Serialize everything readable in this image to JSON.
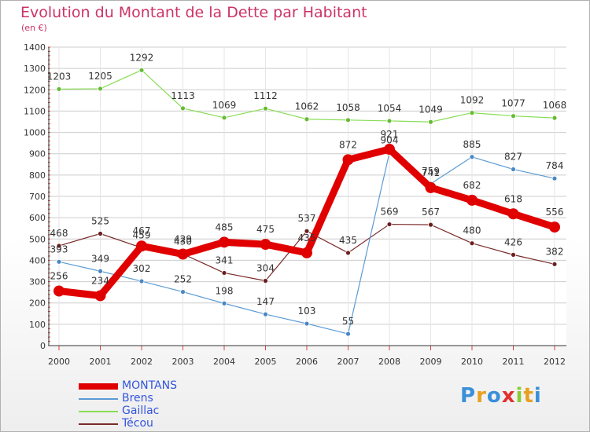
{
  "title": "Evolution du Montant de la Dette par Habitant",
  "subtitle": "(en €)",
  "logo": "Proxiti",
  "chart_data": {
    "type": "line",
    "title": "Evolution du Montant de la Dette par Habitant",
    "subtitle": "(en €)",
    "x": [
      "2000",
      "2001",
      "2002",
      "2003",
      "2004",
      "2005",
      "2006",
      "2007",
      "2008",
      "2009",
      "2010",
      "2011",
      "2012"
    ],
    "ylim": [
      0,
      1400
    ],
    "yticks": [
      0,
      100,
      200,
      300,
      400,
      500,
      600,
      700,
      800,
      900,
      1000,
      1100,
      1200,
      1300,
      1400
    ],
    "grid": true,
    "legend_position": "bottom-left",
    "series": [
      {
        "name": "MONTANS",
        "color": "#e00000",
        "values": [
          256,
          234,
          467,
          429,
          485,
          475,
          435,
          872,
          921,
          741,
          682,
          618,
          556
        ]
      },
      {
        "name": "Brens",
        "color": "#5b9bd5",
        "values": [
          393,
          349,
          302,
          252,
          198,
          147,
          103,
          55,
          904,
          759,
          885,
          827,
          784
        ]
      },
      {
        "name": "Gaillac",
        "color": "#88dd55",
        "values": [
          1203,
          1205,
          1292,
          1113,
          1069,
          1112,
          1062,
          1058,
          1054,
          1049,
          1092,
          1077,
          1068
        ]
      },
      {
        "name": "Técou",
        "color": "#7a2a2a",
        "values": [
          468,
          525,
          459,
          430,
          341,
          304,
          537,
          435,
          569,
          567,
          480,
          426,
          382
        ]
      }
    ]
  }
}
